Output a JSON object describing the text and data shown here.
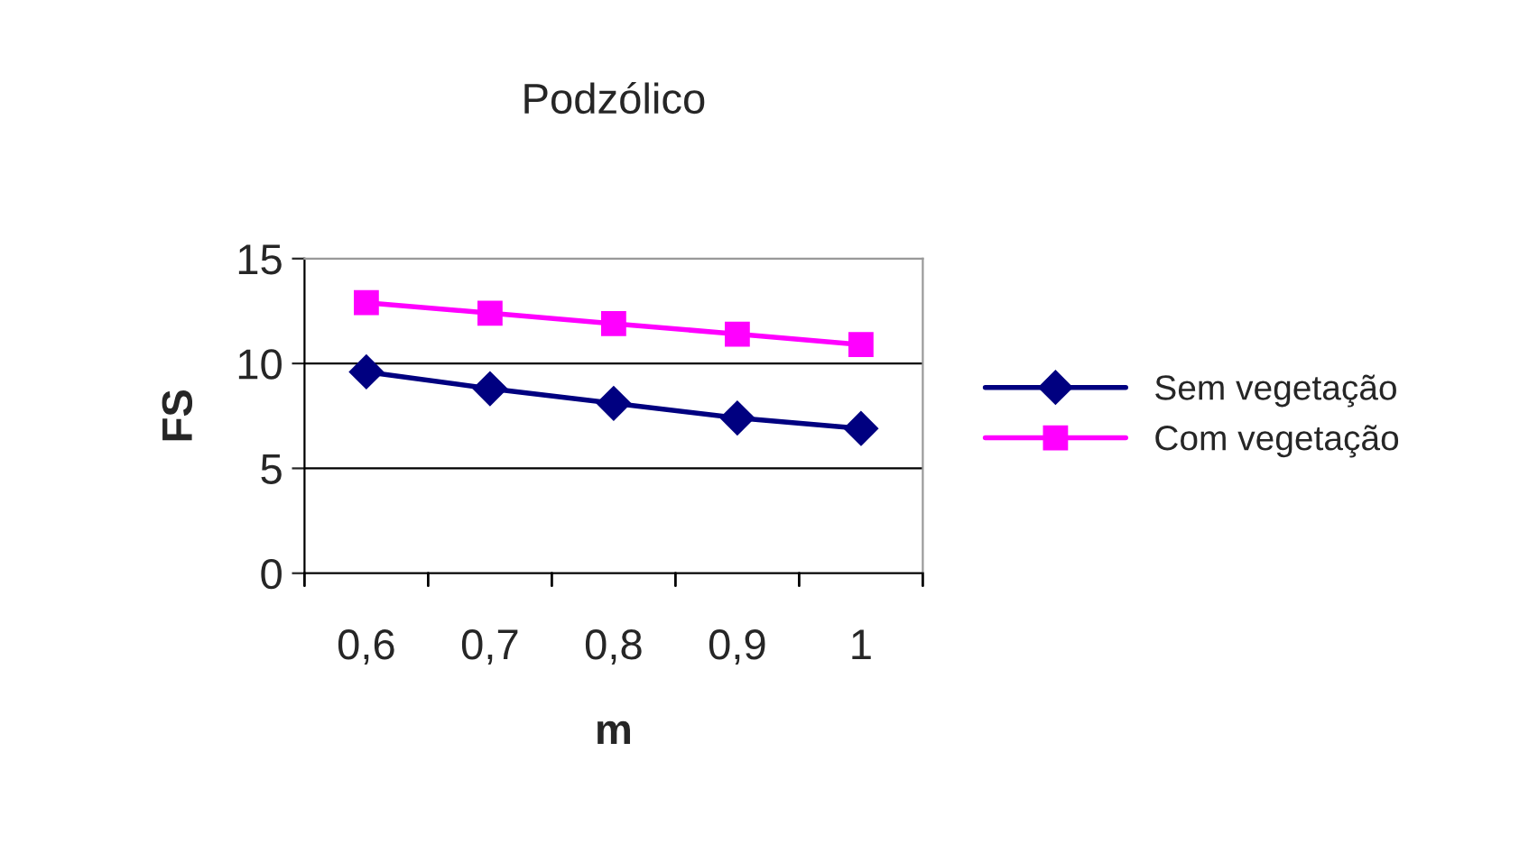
{
  "chart_data": {
    "type": "line",
    "title": "Podzólico",
    "xlabel": "m",
    "ylabel": "FS",
    "categories": [
      "0,6",
      "0,7",
      "0,8",
      "0,9",
      "1"
    ],
    "series": [
      {
        "name": "Sem vegetação",
        "color": "#000080",
        "marker": "diamond",
        "values": [
          9.6,
          8.8,
          8.1,
          7.4,
          6.9
        ]
      },
      {
        "name": "Com vegetação",
        "color": "#ff00ff",
        "marker": "square",
        "values": [
          12.9,
          12.4,
          11.9,
          11.4,
          10.9
        ]
      }
    ],
    "ylim": [
      0,
      15
    ],
    "yticks": [
      0,
      5,
      10,
      15
    ],
    "grid": "y",
    "legend": "right",
    "line_style": "solid"
  }
}
